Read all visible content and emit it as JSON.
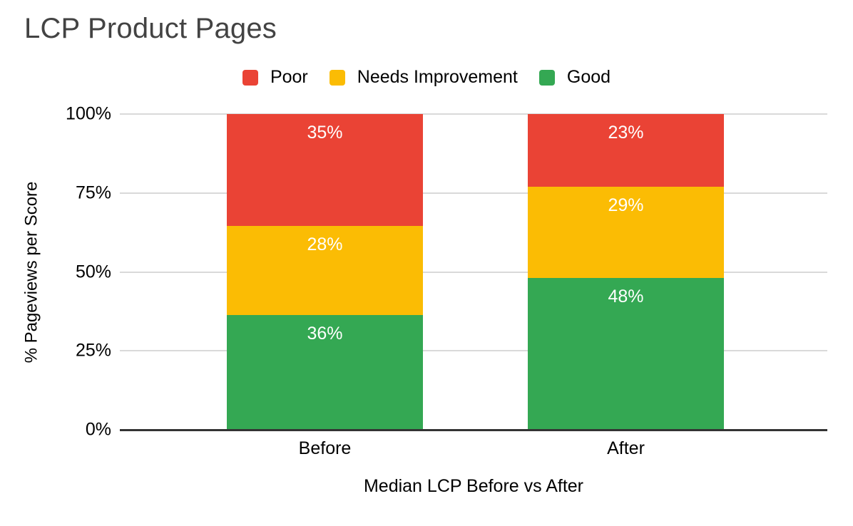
{
  "title": "LCP Product Pages",
  "chart_data": {
    "type": "bar",
    "stacked": true,
    "stack_total": 100,
    "title": "LCP Product Pages",
    "categories": [
      "Before",
      "After"
    ],
    "series": [
      {
        "name": "Poor",
        "color": "#EA4335",
        "values": [
          35,
          23
        ]
      },
      {
        "name": "Needs Improvement",
        "color": "#FBBC04",
        "values": [
          28,
          29
        ]
      },
      {
        "name": "Good",
        "color": "#34A853",
        "values": [
          36,
          48
        ]
      }
    ],
    "bar_labels": [
      "35%",
      "23%",
      "28%",
      "29%",
      "36%",
      "48%"
    ],
    "xlabel": "Median LCP Before vs After",
    "ylabel": "% Pageviews per Score",
    "y_ticks": [
      "0%",
      "25%",
      "50%",
      "75%",
      "100%"
    ],
    "ylim": [
      0,
      100
    ],
    "grid": true,
    "legend_position": "top"
  },
  "colors": {
    "poor": "#EA4335",
    "needs_improvement": "#FBBC04",
    "good": "#34A853",
    "title_text": "#434343",
    "axis_text": "#000000",
    "bar_label_text": "#FFFFFF",
    "gridline": "#D9D9D9",
    "axis_line": "#333333",
    "background": "#FFFFFF"
  }
}
